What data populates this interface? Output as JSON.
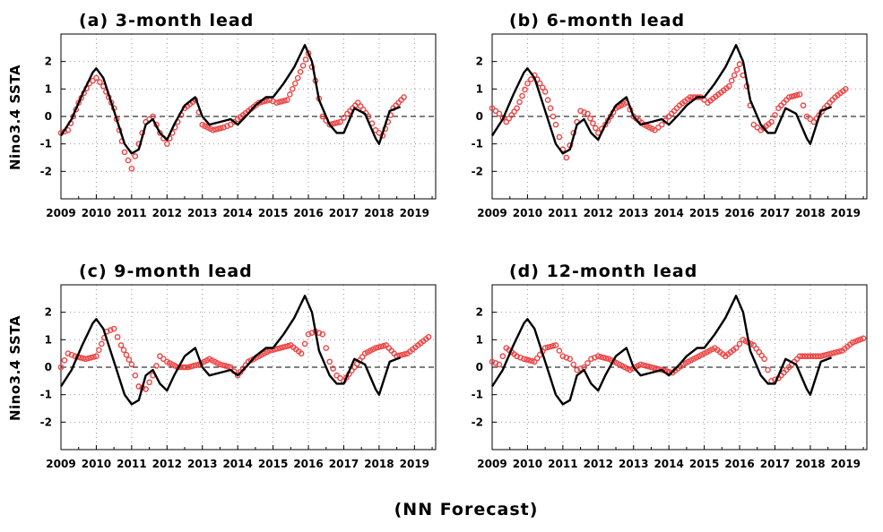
{
  "footer": "(NN Forecast)",
  "colors": {
    "observed": "#000000",
    "forecast": "#ee4444",
    "grid": "#999999"
  },
  "chart_data": [
    {
      "type": "line",
      "title": "(a) 3-month lead",
      "ylabel": "Nino3.4 SSTA",
      "xlim": [
        2009,
        2019.6
      ],
      "ylim": [
        -3,
        3
      ],
      "xticks": [
        "2009",
        "2010",
        "2011",
        "2012",
        "2013",
        "2014",
        "2015",
        "2016",
        "2017",
        "2018",
        "2019"
      ],
      "yticks": [
        "-2",
        "-1",
        "0",
        "1",
        "2"
      ],
      "grid": true,
      "series": [
        {
          "style": "black solid line",
          "x": [
            2009.0,
            2009.3,
            2009.6,
            2009.9,
            2010.0,
            2010.2,
            2010.5,
            2010.8,
            2011.0,
            2011.2,
            2011.4,
            2011.6,
            2011.8,
            2012.0,
            2012.2,
            2012.5,
            2012.8,
            2013.0,
            2013.2,
            2013.5,
            2013.8,
            2014.0,
            2014.3,
            2014.5,
            2014.8,
            2015.0,
            2015.3,
            2015.6,
            2015.9,
            2016.1,
            2016.3,
            2016.6,
            2016.8,
            2017.0,
            2017.3,
            2017.6,
            2017.9,
            2018.0,
            2018.3,
            2018.6
          ],
          "y": [
            -0.7,
            -0.1,
            0.8,
            1.6,
            1.75,
            1.4,
            0.2,
            -1.0,
            -1.35,
            -1.2,
            -0.3,
            -0.1,
            -0.6,
            -0.85,
            -0.3,
            0.4,
            0.7,
            0.0,
            -0.3,
            -0.2,
            -0.1,
            -0.3,
            0.1,
            0.4,
            0.7,
            0.7,
            1.2,
            1.8,
            2.6,
            2.0,
            0.6,
            -0.3,
            -0.6,
            -0.6,
            0.3,
            0.1,
            -0.8,
            -1.0,
            0.2,
            0.35
          ]
        },
        {
          "style": "red open circles",
          "x": [
            2009.0,
            2009.2,
            2009.5,
            2009.8,
            2010.0,
            2010.2,
            2010.5,
            2010.8,
            2011.0,
            2011.2,
            2011.4,
            2011.6,
            2011.8,
            2012.0,
            2012.3,
            2012.5,
            2012.8,
            2013.0,
            2013.3,
            2013.6,
            2013.8,
            2014.0,
            2014.3,
            2014.6,
            2014.9,
            2015.1,
            2015.4,
            2015.7,
            2016.0,
            2016.2,
            2016.4,
            2016.6,
            2016.9,
            2017.1,
            2017.4,
            2017.7,
            2017.9,
            2018.1,
            2018.4,
            2018.7
          ],
          "y": [
            -0.6,
            -0.5,
            0.5,
            1.2,
            1.4,
            1.1,
            0.3,
            -1.3,
            -1.9,
            -1.0,
            -0.2,
            0.0,
            -0.6,
            -1.0,
            -0.2,
            0.3,
            0.6,
            -0.3,
            -0.5,
            -0.4,
            -0.3,
            -0.1,
            0.2,
            0.5,
            0.6,
            0.5,
            0.6,
            1.4,
            2.3,
            1.3,
            0.0,
            -0.3,
            -0.2,
            0.1,
            0.5,
            0.0,
            -0.5,
            -0.7,
            0.3,
            0.7
          ]
        }
      ]
    },
    {
      "type": "line",
      "title": "(b) 6-month lead",
      "ylabel": "",
      "xlim": [
        2009,
        2019.6
      ],
      "ylim": [
        -3,
        3
      ],
      "xticks": [
        "2009",
        "2010",
        "2011",
        "2012",
        "2013",
        "2014",
        "2015",
        "2016",
        "2017",
        "2018",
        "2019"
      ],
      "yticks": [
        "-2",
        "-1",
        "0",
        "1",
        "2"
      ],
      "grid": true,
      "series": [
        {
          "style": "black solid line",
          "x": [
            2009.0,
            2009.3,
            2009.6,
            2009.9,
            2010.0,
            2010.2,
            2010.5,
            2010.8,
            2011.0,
            2011.2,
            2011.4,
            2011.6,
            2011.8,
            2012.0,
            2012.2,
            2012.5,
            2012.8,
            2013.0,
            2013.2,
            2013.5,
            2013.8,
            2014.0,
            2014.3,
            2014.5,
            2014.8,
            2015.0,
            2015.3,
            2015.6,
            2015.9,
            2016.1,
            2016.3,
            2016.6,
            2016.8,
            2017.0,
            2017.3,
            2017.6,
            2017.9,
            2018.0,
            2018.3,
            2018.6
          ],
          "y": [
            -0.7,
            -0.1,
            0.8,
            1.6,
            1.75,
            1.4,
            0.2,
            -1.0,
            -1.35,
            -1.2,
            -0.3,
            -0.1,
            -0.6,
            -0.85,
            -0.3,
            0.4,
            0.7,
            0.0,
            -0.3,
            -0.2,
            -0.1,
            -0.3,
            0.1,
            0.4,
            0.7,
            0.7,
            1.2,
            1.8,
            2.6,
            2.0,
            0.6,
            -0.3,
            -0.6,
            -0.6,
            0.3,
            0.1,
            -0.8,
            -1.0,
            0.2,
            0.35
          ]
        },
        {
          "style": "red open circles",
          "x": [
            2009.0,
            2009.2,
            2009.4,
            2009.7,
            2010.0,
            2010.2,
            2010.5,
            2010.8,
            2011.0,
            2011.1,
            2011.3,
            2011.5,
            2011.7,
            2012.0,
            2012.2,
            2012.5,
            2012.8,
            2013.0,
            2013.3,
            2013.6,
            2013.8,
            2014.0,
            2014.3,
            2014.6,
            2014.9,
            2015.1,
            2015.4,
            2015.7,
            2016.0,
            2016.2,
            2016.4,
            2016.6,
            2016.9,
            2017.1,
            2017.4,
            2017.7,
            2017.9,
            2018.1,
            2018.4,
            2018.7,
            2019.0
          ],
          "y": [
            0.3,
            0.1,
            -0.2,
            0.3,
            1.2,
            1.5,
            0.9,
            -0.3,
            -1.2,
            -1.5,
            -0.6,
            0.2,
            0.1,
            -0.6,
            -0.3,
            0.3,
            0.5,
            0.0,
            -0.3,
            -0.5,
            -0.3,
            0.0,
            0.4,
            0.7,
            0.7,
            0.5,
            0.8,
            1.1,
            1.9,
            1.1,
            -0.3,
            -0.5,
            -0.2,
            0.3,
            0.7,
            0.8,
            0.0,
            -0.2,
            0.3,
            0.7,
            1.0
          ]
        }
      ]
    },
    {
      "type": "line",
      "title": "(c) 9-month lead",
      "ylabel": "Nino3.4 SSTA",
      "xlim": [
        2009,
        2019.6
      ],
      "ylim": [
        -3,
        3
      ],
      "xticks": [
        "2009",
        "2010",
        "2011",
        "2012",
        "2013",
        "2014",
        "2015",
        "2016",
        "2017",
        "2018",
        "2019"
      ],
      "yticks": [
        "-2",
        "-1",
        "0",
        "1",
        "2"
      ],
      "grid": true,
      "series": [
        {
          "style": "black solid line",
          "x": [
            2009.0,
            2009.3,
            2009.6,
            2009.9,
            2010.0,
            2010.2,
            2010.5,
            2010.8,
            2011.0,
            2011.2,
            2011.4,
            2011.6,
            2011.8,
            2012.0,
            2012.2,
            2012.5,
            2012.8,
            2013.0,
            2013.2,
            2013.5,
            2013.8,
            2014.0,
            2014.3,
            2014.5,
            2014.8,
            2015.0,
            2015.3,
            2015.6,
            2015.9,
            2016.1,
            2016.3,
            2016.6,
            2016.8,
            2017.0,
            2017.3,
            2017.6,
            2017.9,
            2018.0,
            2018.3,
            2018.6
          ],
          "y": [
            -0.7,
            -0.1,
            0.8,
            1.6,
            1.75,
            1.4,
            0.2,
            -1.0,
            -1.35,
            -1.2,
            -0.3,
            -0.1,
            -0.6,
            -0.85,
            -0.3,
            0.4,
            0.7,
            0.0,
            -0.3,
            -0.2,
            -0.1,
            -0.3,
            0.1,
            0.4,
            0.7,
            0.7,
            1.2,
            1.8,
            2.6,
            2.0,
            0.6,
            -0.3,
            -0.6,
            -0.6,
            0.3,
            0.1,
            -0.8,
            -1.0,
            0.2,
            0.35
          ]
        },
        {
          "style": "red open circles",
          "x": [
            2009.0,
            2009.2,
            2009.4,
            2009.7,
            2010.0,
            2010.3,
            2010.5,
            2010.7,
            2011.0,
            2011.2,
            2011.4,
            2011.6,
            2011.8,
            2012.0,
            2012.3,
            2012.6,
            2012.9,
            2013.2,
            2013.5,
            2013.8,
            2014.0,
            2014.3,
            2014.6,
            2014.9,
            2015.2,
            2015.5,
            2015.8,
            2016.0,
            2016.2,
            2016.4,
            2016.6,
            2016.8,
            2017.0,
            2017.3,
            2017.6,
            2017.9,
            2018.2,
            2018.5,
            2018.8,
            2019.1,
            2019.4
          ],
          "y": [
            0.0,
            0.5,
            0.4,
            0.3,
            0.4,
            1.3,
            1.4,
            0.8,
            0.1,
            -0.7,
            -0.8,
            -0.3,
            0.4,
            0.2,
            0.0,
            0.0,
            0.1,
            0.3,
            0.1,
            0.0,
            -0.3,
            0.2,
            0.4,
            0.6,
            0.7,
            0.8,
            0.5,
            1.2,
            1.3,
            1.2,
            0.2,
            -0.3,
            -0.5,
            0.0,
            0.5,
            0.7,
            0.8,
            0.4,
            0.5,
            0.8,
            1.1
          ]
        }
      ]
    },
    {
      "type": "line",
      "title": "(d) 12-month lead",
      "ylabel": "",
      "xlim": [
        2009,
        2019.6
      ],
      "ylim": [
        -3,
        3
      ],
      "xticks": [
        "2009",
        "2010",
        "2011",
        "2012",
        "2013",
        "2014",
        "2015",
        "2016",
        "2017",
        "2018",
        "2019"
      ],
      "yticks": [
        "-2",
        "-1",
        "0",
        "1",
        "2"
      ],
      "grid": true,
      "series": [
        {
          "style": "black solid line",
          "x": [
            2009.0,
            2009.3,
            2009.6,
            2009.9,
            2010.0,
            2010.2,
            2010.5,
            2010.8,
            2011.0,
            2011.2,
            2011.4,
            2011.6,
            2011.8,
            2012.0,
            2012.2,
            2012.5,
            2012.8,
            2013.0,
            2013.2,
            2013.5,
            2013.8,
            2014.0,
            2014.3,
            2014.5,
            2014.8,
            2015.0,
            2015.3,
            2015.6,
            2015.9,
            2016.1,
            2016.3,
            2016.6,
            2016.8,
            2017.0,
            2017.3,
            2017.6,
            2017.9,
            2018.0,
            2018.3,
            2018.6
          ],
          "y": [
            -0.7,
            -0.1,
            0.8,
            1.6,
            1.75,
            1.4,
            0.2,
            -1.0,
            -1.35,
            -1.2,
            -0.3,
            -0.1,
            -0.6,
            -0.85,
            -0.3,
            0.4,
            0.7,
            0.0,
            -0.3,
            -0.2,
            -0.1,
            -0.3,
            0.1,
            0.4,
            0.7,
            0.7,
            1.2,
            1.8,
            2.6,
            2.0,
            0.6,
            -0.3,
            -0.6,
            -0.6,
            0.3,
            0.1,
            -0.8,
            -1.0,
            0.2,
            0.35
          ]
        },
        {
          "style": "red open circles",
          "x": [
            2009.0,
            2009.2,
            2009.4,
            2009.7,
            2009.9,
            2010.2,
            2010.5,
            2010.8,
            2011.0,
            2011.2,
            2011.4,
            2011.6,
            2011.8,
            2012.0,
            2012.3,
            2012.6,
            2012.9,
            2013.2,
            2013.5,
            2013.8,
            2014.1,
            2014.4,
            2014.7,
            2015.0,
            2015.3,
            2015.6,
            2015.9,
            2016.1,
            2016.4,
            2016.7,
            2016.9,
            2017.1,
            2017.4,
            2017.7,
            2018.0,
            2018.3,
            2018.6,
            2018.9,
            2019.2,
            2019.5
          ],
          "y": [
            0.2,
            0.1,
            0.7,
            0.4,
            0.3,
            0.2,
            0.7,
            0.8,
            0.4,
            0.3,
            -0.1,
            0.0,
            0.3,
            0.4,
            0.3,
            0.1,
            -0.1,
            0.1,
            0.0,
            -0.1,
            -0.2,
            0.1,
            0.3,
            0.5,
            0.7,
            0.4,
            0.7,
            1.0,
            0.8,
            0.3,
            -0.5,
            -0.4,
            0.0,
            0.4,
            0.4,
            0.4,
            0.5,
            0.6,
            0.9,
            1.05
          ]
        }
      ]
    }
  ]
}
